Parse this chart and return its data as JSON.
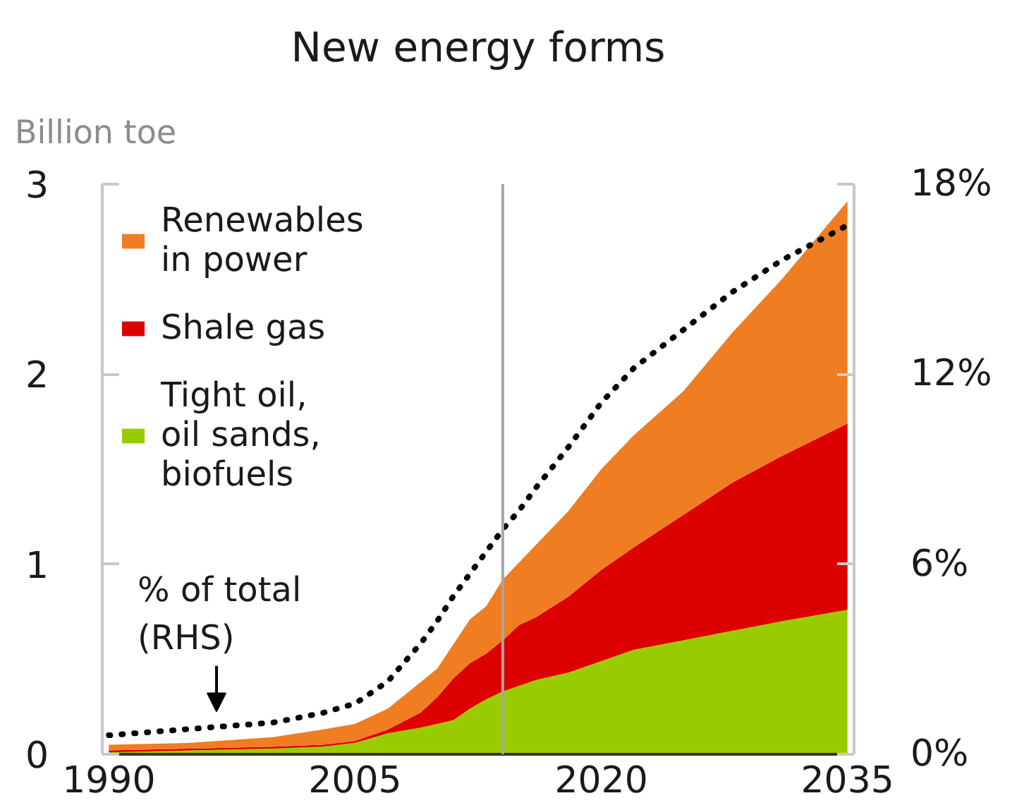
{
  "chart_data": {
    "type": "area",
    "title": "New energy forms",
    "ylabel": "Billion toe",
    "stacked": true,
    "x": [
      1990,
      1995,
      2000,
      2003,
      2005,
      2007,
      2009,
      2010,
      2011,
      2012,
      2013,
      2014,
      2015,
      2016,
      2018,
      2020,
      2022,
      2025,
      2028,
      2031,
      2035
    ],
    "series": [
      {
        "name": "Tight oil, oil sands, biofuels",
        "color": "#99cc00",
        "values": [
          0.01,
          0.02,
          0.03,
          0.04,
          0.06,
          0.11,
          0.14,
          0.16,
          0.18,
          0.24,
          0.29,
          0.33,
          0.36,
          0.39,
          0.43,
          0.49,
          0.55,
          0.6,
          0.65,
          0.7,
          0.76
        ]
      },
      {
        "name": "Shale gas",
        "color": "#dd0000",
        "values": [
          0.01,
          0.01,
          0.01,
          0.01,
          0.01,
          0.02,
          0.08,
          0.14,
          0.22,
          0.24,
          0.24,
          0.27,
          0.32,
          0.33,
          0.4,
          0.48,
          0.54,
          0.66,
          0.78,
          0.87,
          0.98
        ]
      },
      {
        "name": "Renewables in power",
        "color": "#f07d22",
        "values": [
          0.03,
          0.03,
          0.05,
          0.08,
          0.09,
          0.11,
          0.16,
          0.15,
          0.18,
          0.23,
          0.25,
          0.32,
          0.33,
          0.38,
          0.45,
          0.53,
          0.59,
          0.65,
          0.79,
          0.93,
          1.17
        ]
      },
      {
        "type": "line",
        "axis": "y2",
        "color": "#000000",
        "line_style": "dotted",
        "values": [
          0.6,
          0.8,
          1.0,
          1.3,
          1.6,
          2.3,
          3.5,
          4.2,
          5.0,
          5.7,
          6.4,
          7.1,
          7.7,
          8.4,
          9.7,
          11.1,
          12.2,
          13.4,
          14.6,
          15.6,
          16.7
        ]
      }
    ],
    "xlim": [
      1989.6,
      2035.4
    ],
    "xticks": [
      1990,
      2005,
      2020,
      2035
    ],
    "ylim": [
      0,
      3
    ],
    "yticks": [
      0,
      1,
      2,
      3
    ],
    "y2lim": [
      0,
      18
    ],
    "y2ticks": [
      {
        "value": 0,
        "label": "0%"
      },
      {
        "value": 6,
        "label": "6%"
      },
      {
        "value": 12,
        "label": "12%"
      },
      {
        "value": 18,
        "label": "18%"
      }
    ],
    "ref_lines": [
      {
        "axis": "x",
        "value": 2014,
        "color": "#a6a6a6"
      }
    ],
    "annotations": [
      "% of total (RHS)"
    ],
    "legend": "top left",
    "grid": false
  }
}
